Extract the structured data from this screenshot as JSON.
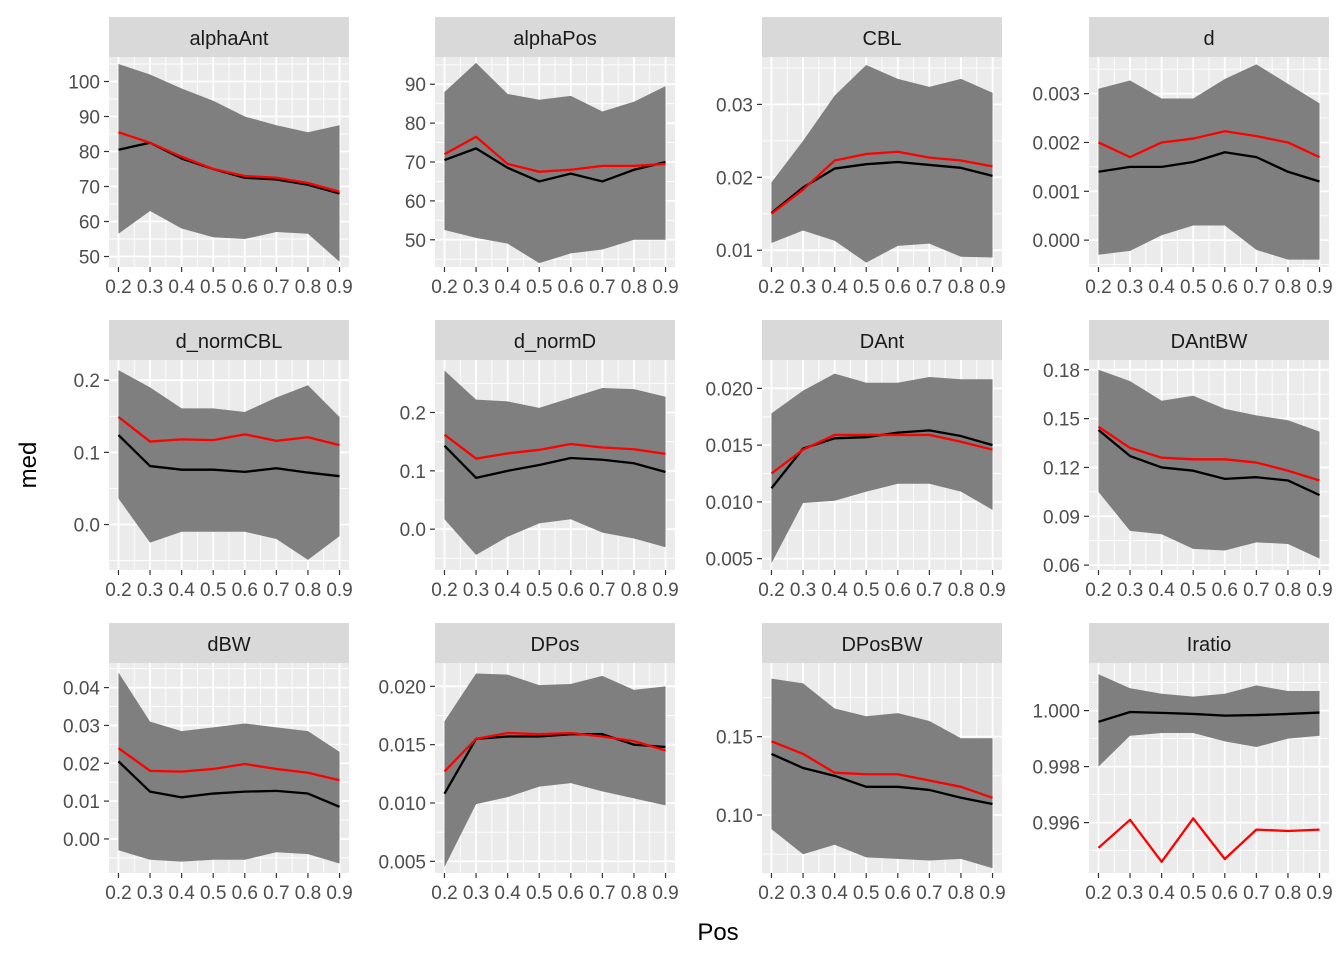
{
  "chart_data": {
    "type": "line",
    "xlabel": "Pos",
    "ylabel": "med",
    "x": [
      0.2,
      0.3,
      0.4,
      0.5,
      0.6,
      0.7,
      0.8,
      0.9
    ],
    "x_tick_labels": [
      "0.2",
      "0.3",
      "0.4",
      "0.5",
      "0.6",
      "0.7",
      "0.8",
      "0.9"
    ],
    "colors": {
      "panel_bg": "#ebebeb",
      "grid": "#ffffff",
      "strip_bg": "#d9d9d9",
      "ribbon": "#7f7f7f",
      "line_black": "#000000",
      "line_red": "#ff0000"
    },
    "panels": [
      {
        "title": "alphaAnt",
        "ylim": [
          47,
          107
        ],
        "yticks": [
          50,
          60,
          70,
          80,
          90,
          100
        ],
        "ytick_labels": [
          "50",
          "60",
          "70",
          "80",
          "90",
          "100"
        ],
        "ribbon_upper": [
          105,
          102,
          98,
          94.5,
          90,
          87.5,
          85.5,
          87.5
        ],
        "ribbon_lower": [
          56.5,
          63,
          58,
          55.5,
          55,
          57,
          56.5,
          48.5
        ],
        "black": [
          80.5,
          82.5,
          78,
          75,
          72.5,
          72,
          70.5,
          68
        ],
        "red": [
          85.5,
          82.5,
          78.5,
          75,
          73,
          72.5,
          71,
          68.5
        ]
      },
      {
        "title": "alphaPos",
        "ylim": [
          43,
          97
        ],
        "yticks": [
          50,
          60,
          70,
          80,
          90
        ],
        "ytick_labels": [
          "50",
          "60",
          "70",
          "80",
          "90"
        ],
        "ribbon_upper": [
          88,
          95.5,
          87.5,
          86,
          87,
          83,
          85.5,
          89.5
        ],
        "ribbon_lower": [
          52.5,
          50.5,
          49,
          44,
          46.5,
          47.5,
          50,
          50
        ],
        "black": [
          70.5,
          73.5,
          68.5,
          65,
          67,
          65,
          68,
          70
        ],
        "red": [
          72,
          76.5,
          69.5,
          67.5,
          68,
          69,
          69,
          69.5
        ]
      },
      {
        "title": "CBL",
        "ylim": [
          0.0077,
          0.0365
        ],
        "yticks": [
          0.01,
          0.02,
          0.03
        ],
        "ytick_labels": [
          "0.01",
          "0.02",
          "0.03"
        ],
        "ribbon_upper": [
          0.0193,
          0.025,
          0.0312,
          0.0354,
          0.0335,
          0.0324,
          0.0335,
          0.0316
        ],
        "ribbon_lower": [
          0.011,
          0.0127,
          0.0113,
          0.0083,
          0.0106,
          0.0109,
          0.0091,
          0.009
        ],
        "black": [
          0.0151,
          0.0186,
          0.0212,
          0.0218,
          0.0221,
          0.0217,
          0.0213,
          0.0202
        ],
        "red": [
          0.015,
          0.0183,
          0.0223,
          0.0232,
          0.0235,
          0.0227,
          0.0223,
          0.0215
        ]
      },
      {
        "title": "d",
        "ylim": [
          -0.00055,
          0.00375
        ],
        "yticks": [
          0.0,
          0.001,
          0.002,
          0.003
        ],
        "ytick_labels": [
          "0.000",
          "0.001",
          "0.002",
          "0.003"
        ],
        "ribbon_upper": [
          0.0031,
          0.00327,
          0.0029,
          0.0029,
          0.0033,
          0.0036,
          0.0032,
          0.0028
        ],
        "ribbon_lower": [
          -0.0003,
          -0.00022,
          0.0001,
          0.0003,
          0.0003,
          -0.0002,
          -0.0004,
          -0.0004
        ],
        "black": [
          0.0014,
          0.0015,
          0.0015,
          0.0016,
          0.0018,
          0.0017,
          0.0014,
          0.0012
        ],
        "red": [
          0.002,
          0.0017,
          0.002,
          0.00208,
          0.00223,
          0.00213,
          0.002,
          0.0017
        ]
      },
      {
        "title": "d_normCBL",
        "ylim": [
          -0.063,
          0.228
        ],
        "yticks": [
          0.0,
          0.1,
          0.2
        ],
        "ytick_labels": [
          "0.0",
          "0.1",
          "0.2"
        ],
        "ribbon_upper": [
          0.214,
          0.19,
          0.161,
          0.161,
          0.156,
          0.176,
          0.193,
          0.149
        ],
        "ribbon_lower": [
          0.036,
          -0.025,
          -0.01,
          -0.01,
          -0.01,
          -0.02,
          -0.049,
          -0.016
        ],
        "black": [
          0.124,
          0.081,
          0.076,
          0.076,
          0.073,
          0.078,
          0.072,
          0.067
        ],
        "red": [
          0.149,
          0.115,
          0.118,
          0.117,
          0.125,
          0.116,
          0.121,
          0.11
        ]
      },
      {
        "title": "d_normD",
        "ylim": [
          -0.07,
          0.29
        ],
        "yticks": [
          0.0,
          0.1,
          0.2
        ],
        "ytick_labels": [
          "0.0",
          "0.1",
          "0.2"
        ],
        "ribbon_upper": [
          0.272,
          0.222,
          0.219,
          0.208,
          0.225,
          0.242,
          0.24,
          0.227
        ],
        "ribbon_lower": [
          0.017,
          -0.044,
          -0.013,
          0.01,
          0.017,
          -0.006,
          -0.016,
          -0.031
        ],
        "black": [
          0.143,
          0.088,
          0.1,
          0.11,
          0.122,
          0.119,
          0.113,
          0.098
        ],
        "red": [
          0.162,
          0.121,
          0.13,
          0.136,
          0.146,
          0.14,
          0.137,
          0.129
        ]
      },
      {
        "title": "DAnt",
        "ylim": [
          0.004,
          0.0225
        ],
        "yticks": [
          0.005,
          0.01,
          0.015,
          0.02
        ],
        "ytick_labels": [
          "0.005",
          "0.010",
          "0.015",
          "0.020"
        ],
        "ribbon_upper": [
          0.0178,
          0.0198,
          0.0213,
          0.0205,
          0.0205,
          0.021,
          0.0208,
          0.0208
        ],
        "ribbon_lower": [
          0.0046,
          0.0099,
          0.0101,
          0.0109,
          0.0116,
          0.0116,
          0.0109,
          0.0093
        ],
        "black": [
          0.0112,
          0.0147,
          0.0156,
          0.0157,
          0.0161,
          0.0163,
          0.0158,
          0.015
        ],
        "red": [
          0.0125,
          0.0146,
          0.0159,
          0.0159,
          0.0159,
          0.0159,
          0.0153,
          0.0146
        ]
      },
      {
        "title": "DAntBW",
        "ylim": [
          0.057,
          0.186
        ],
        "yticks": [
          0.06,
          0.09,
          0.12,
          0.15,
          0.18
        ],
        "ytick_labels": [
          "0.06",
          "0.09",
          "0.12",
          "0.15",
          "0.18"
        ],
        "ribbon_upper": [
          0.18,
          0.173,
          0.161,
          0.164,
          0.156,
          0.152,
          0.149,
          0.142
        ],
        "ribbon_lower": [
          0.105,
          0.081,
          0.079,
          0.07,
          0.069,
          0.074,
          0.073,
          0.064
        ],
        "black": [
          0.143,
          0.127,
          0.12,
          0.118,
          0.113,
          0.114,
          0.112,
          0.103
        ],
        "red": [
          0.145,
          0.132,
          0.126,
          0.125,
          0.125,
          0.123,
          0.118,
          0.112
        ]
      },
      {
        "title": "dBW",
        "ylim": [
          -0.009,
          0.0465
        ],
        "yticks": [
          0.0,
          0.01,
          0.02,
          0.03,
          0.04
        ],
        "ytick_labels": [
          "0.00",
          "0.01",
          "0.02",
          "0.03",
          "0.04"
        ],
        "ribbon_upper": [
          0.044,
          0.031,
          0.0285,
          0.0295,
          0.0305,
          0.0295,
          0.0285,
          0.023
        ],
        "ribbon_lower": [
          -0.003,
          -0.0055,
          -0.006,
          -0.0055,
          -0.0055,
          -0.0035,
          -0.004,
          -0.0065
        ],
        "black": [
          0.0205,
          0.0125,
          0.011,
          0.012,
          0.0125,
          0.0127,
          0.012,
          0.0085
        ],
        "red": [
          0.024,
          0.018,
          0.0178,
          0.0185,
          0.0198,
          0.0185,
          0.0175,
          0.0155
        ]
      },
      {
        "title": "DPos",
        "ylim": [
          0.004,
          0.022
        ],
        "yticks": [
          0.005,
          0.01,
          0.015,
          0.02
        ],
        "ytick_labels": [
          "0.005",
          "0.010",
          "0.015",
          "0.020"
        ],
        "ribbon_upper": [
          0.017,
          0.0211,
          0.021,
          0.0201,
          0.0202,
          0.0209,
          0.0197,
          0.02
        ],
        "ribbon_lower": [
          0.0045,
          0.0099,
          0.0105,
          0.0114,
          0.0117,
          0.011,
          0.0104,
          0.0098
        ],
        "black": [
          0.0108,
          0.0155,
          0.0157,
          0.0157,
          0.0159,
          0.0159,
          0.015,
          0.0148
        ],
        "red": [
          0.0127,
          0.0155,
          0.016,
          0.0159,
          0.016,
          0.0157,
          0.0153,
          0.0145
        ]
      },
      {
        "title": "DPosBW",
        "ylim": [
          0.063,
          0.197
        ],
        "yticks": [
          0.1,
          0.15
        ],
        "ytick_labels": [
          "0.10",
          "0.15"
        ],
        "ribbon_upper": [
          0.187,
          0.184,
          0.168,
          0.163,
          0.165,
          0.16,
          0.149,
          0.149
        ],
        "ribbon_lower": [
          0.091,
          0.075,
          0.081,
          0.073,
          0.072,
          0.071,
          0.072,
          0.066
        ],
        "black": [
          0.139,
          0.13,
          0.125,
          0.118,
          0.118,
          0.116,
          0.111,
          0.107
        ],
        "red": [
          0.147,
          0.139,
          0.127,
          0.126,
          0.126,
          0.122,
          0.118,
          0.111
        ]
      },
      {
        "title": "Iratio",
        "ylim": [
          0.9942,
          1.0017
        ],
        "yticks": [
          0.996,
          0.998,
          1.0
        ],
        "ytick_labels": [
          "0.996",
          "0.998",
          "1.000"
        ],
        "ribbon_upper": [
          1.0013,
          1.0008,
          1.0006,
          1.0005,
          1.0006,
          1.0009,
          1.0007,
          1.0007
        ],
        "ribbon_lower": [
          0.998,
          0.9991,
          0.9992,
          0.9992,
          0.9989,
          0.9987,
          0.999,
          0.9991
        ],
        "black": [
          0.9996,
          0.99995,
          0.99992,
          0.99988,
          0.99982,
          0.99984,
          0.99988,
          0.99993
        ],
        "red": [
          0.9951,
          0.9961,
          0.9946,
          0.99615,
          0.9947,
          0.99575,
          0.9957,
          0.99575
        ]
      }
    ]
  }
}
